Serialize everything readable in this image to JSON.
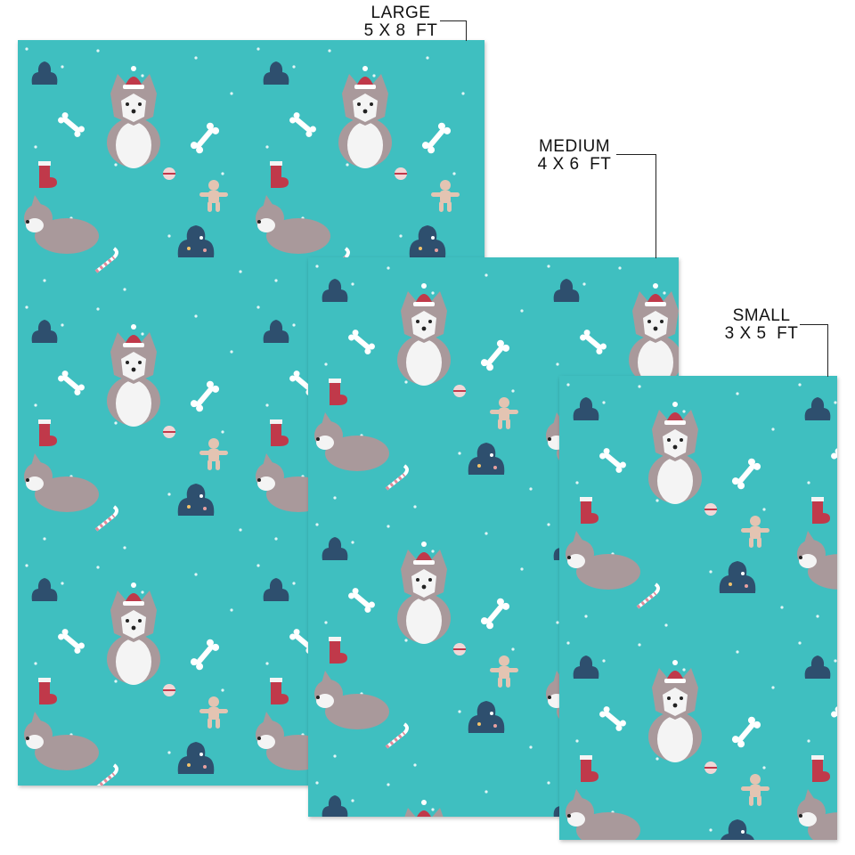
{
  "sizes": [
    {
      "name": "LARGE",
      "dimensions": "5 X 8  FT"
    },
    {
      "name": "MEDIUM",
      "dimensions": "4 X 6  FT"
    },
    {
      "name": "SMALL",
      "dimensions": "3 X 5  FT"
    }
  ],
  "pattern": {
    "background": "#3fbfc0",
    "motifs": [
      "husky-santa-hat",
      "husky-sitting",
      "bone",
      "christmas-tree",
      "gingerbread-man",
      "candy-cane",
      "stocking",
      "ornament",
      "snow-dots"
    ]
  },
  "colors": {
    "teal": "#3fbfc0",
    "husky_gray": "#a9999b",
    "navy": "#2e4f6e",
    "red": "#c0394a",
    "white": "#ffffff"
  }
}
